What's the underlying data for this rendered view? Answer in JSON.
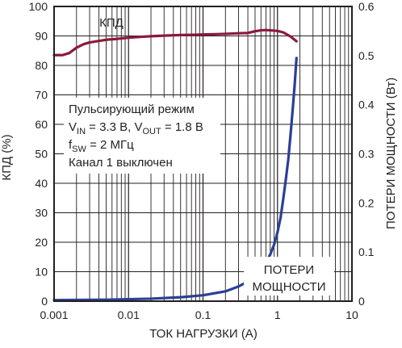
{
  "chart_data": {
    "type": "line",
    "xlabel": "ТОК НАГРУЗКИ (А)",
    "ylabel_left": "КПД (%)",
    "ylabel_right": "ПОТЕРИ МОЩНОСТИ (Вт)",
    "x_scale": "log",
    "xlim": [
      0.001,
      10
    ],
    "ylim_left": [
      0,
      100
    ],
    "ylim_right": [
      0,
      0.6
    ],
    "grid": true,
    "x_ticks": [
      {
        "value": 0.001,
        "label": "0.001"
      },
      {
        "value": 0.01,
        "label": "0.01"
      },
      {
        "value": 0.1,
        "label": "0.1"
      },
      {
        "value": 1,
        "label": "1"
      },
      {
        "value": 10,
        "label": "10"
      }
    ],
    "y_ticks_left": [
      {
        "value": 0,
        "label": "0"
      },
      {
        "value": 10,
        "label": "10"
      },
      {
        "value": 20,
        "label": "20"
      },
      {
        "value": 30,
        "label": "30"
      },
      {
        "value": 40,
        "label": "40"
      },
      {
        "value": 50,
        "label": "50"
      },
      {
        "value": 60,
        "label": "60"
      },
      {
        "value": 70,
        "label": "70"
      },
      {
        "value": 80,
        "label": "80"
      },
      {
        "value": 90,
        "label": "90"
      },
      {
        "value": 100,
        "label": "100"
      }
    ],
    "y_ticks_right": [
      {
        "value": 0,
        "label": "0"
      },
      {
        "value": 0.1,
        "label": "0.1"
      },
      {
        "value": 0.2,
        "label": "0.2"
      },
      {
        "value": 0.3,
        "label": "0.3"
      },
      {
        "value": 0.4,
        "label": "0.4"
      },
      {
        "value": 0.5,
        "label": "0.5"
      },
      {
        "value": 0.6,
        "label": "0.6"
      }
    ],
    "series": [
      {
        "id": "efficiency",
        "axis": "left",
        "color": "#8b1a3a",
        "label": "КПД",
        "points": [
          [
            0.001,
            83.5
          ],
          [
            0.0013,
            83.5
          ],
          [
            0.0016,
            84.2
          ],
          [
            0.002,
            86.0
          ],
          [
            0.0025,
            87.2
          ],
          [
            0.003,
            87.8
          ],
          [
            0.004,
            88.3
          ],
          [
            0.005,
            88.7
          ],
          [
            0.007,
            89.0
          ],
          [
            0.01,
            89.4
          ],
          [
            0.015,
            89.7
          ],
          [
            0.02,
            89.9
          ],
          [
            0.03,
            90.1
          ],
          [
            0.05,
            90.3
          ],
          [
            0.07,
            90.4
          ],
          [
            0.1,
            90.5
          ],
          [
            0.15,
            90.6
          ],
          [
            0.2,
            90.7
          ],
          [
            0.3,
            90.9
          ],
          [
            0.4,
            91.0
          ],
          [
            0.5,
            91.6
          ],
          [
            0.6,
            91.9
          ],
          [
            0.7,
            92.0
          ],
          [
            0.8,
            91.9
          ],
          [
            1.0,
            91.7
          ],
          [
            1.2,
            91.2
          ],
          [
            1.5,
            89.8
          ],
          [
            1.8,
            88.2
          ]
        ]
      },
      {
        "id": "power_loss",
        "axis": "right",
        "color": "#2b3f94",
        "label_lines": [
          "ПОТЕРИ",
          "МОЩНОСТИ"
        ],
        "points": [
          [
            0.001,
            0.002
          ],
          [
            0.002,
            0.0025
          ],
          [
            0.005,
            0.003
          ],
          [
            0.01,
            0.004
          ],
          [
            0.02,
            0.005
          ],
          [
            0.05,
            0.008
          ],
          [
            0.1,
            0.012
          ],
          [
            0.2,
            0.02
          ],
          [
            0.3,
            0.03
          ],
          [
            0.4,
            0.04
          ],
          [
            0.5,
            0.052
          ],
          [
            0.6,
            0.065
          ],
          [
            0.7,
            0.08
          ],
          [
            0.8,
            0.095
          ],
          [
            0.9,
            0.115
          ],
          [
            1.0,
            0.14
          ],
          [
            1.1,
            0.17
          ],
          [
            1.2,
            0.21
          ],
          [
            1.3,
            0.25
          ],
          [
            1.4,
            0.29
          ],
          [
            1.5,
            0.34
          ],
          [
            1.6,
            0.39
          ],
          [
            1.7,
            0.44
          ],
          [
            1.8,
            0.495
          ]
        ]
      }
    ],
    "annotation_lines": [
      {
        "segments": [
          {
            "t": "Пульсирующий режим"
          }
        ]
      },
      {
        "segments": [
          {
            "t": "V"
          },
          {
            "t": "IN",
            "sub": true
          },
          {
            "t": " = 3.3 В, V"
          },
          {
            "t": "OUT",
            "sub": true
          },
          {
            "t": " = 1.8 В"
          }
        ]
      },
      {
        "segments": [
          {
            "t": "f"
          },
          {
            "t": "SW",
            "sub": true
          },
          {
            "t": " = 2 МГц"
          }
        ]
      },
      {
        "segments": [
          {
            "t": "Канал 1 выключен"
          }
        ]
      }
    ]
  }
}
